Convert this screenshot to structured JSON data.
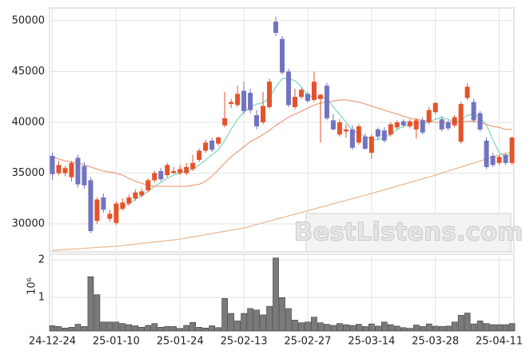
{
  "chart_data": {
    "type": "candlestick",
    "categories": [
      "24-12-24",
      null,
      null,
      null,
      null,
      null,
      null,
      null,
      null,
      null,
      "25-01-10",
      null,
      null,
      null,
      null,
      null,
      null,
      null,
      null,
      null,
      "25-01-24",
      null,
      null,
      null,
      null,
      null,
      null,
      null,
      null,
      null,
      "25-02-13",
      null,
      null,
      null,
      null,
      null,
      null,
      null,
      null,
      null,
      "25-02-27",
      null,
      null,
      null,
      null,
      null,
      null,
      null,
      null,
      null,
      "25-03-14",
      null,
      null,
      null,
      null,
      null,
      null,
      null,
      null,
      null,
      "25-03-28",
      null,
      null,
      null,
      null,
      null,
      null,
      null,
      null,
      null,
      "25-04-11",
      null,
      null
    ],
    "open": [
      36700,
      35000,
      35000,
      34600,
      36500,
      35700,
      34300,
      30300,
      32600,
      30500,
      30100,
      31500,
      32000,
      32500,
      32800,
      33300,
      34300,
      35200,
      34800,
      35000,
      35000,
      35000,
      35400,
      36300,
      37200,
      38200,
      37900,
      39700,
      41800,
      41700,
      43100,
      42900,
      40700,
      40000,
      41500,
      49900,
      48200,
      45000,
      41500,
      42500,
      42800,
      42200,
      42300,
      43600,
      40200,
      38800,
      39100,
      39300,
      38000,
      38600,
      37000,
      39300,
      39200,
      38800,
      39500,
      40100,
      39600,
      39300,
      40200,
      40000,
      41000,
      40300,
      40000,
      39700,
      38100,
      42400,
      42000,
      40900,
      38200,
      36700,
      36000,
      36800,
      36000
    ],
    "high": [
      37000,
      36200,
      35700,
      36200,
      36800,
      36100,
      34600,
      32600,
      33000,
      31400,
      32200,
      32500,
      32900,
      33400,
      33500,
      34500,
      35200,
      35500,
      36000,
      35600,
      35800,
      36000,
      36800,
      37400,
      38300,
      38500,
      38600,
      43000,
      42300,
      43600,
      44000,
      43300,
      41200,
      43000,
      44300,
      50400,
      48500,
      45300,
      43300,
      43400,
      43000,
      45000,
      42800,
      43900,
      40800,
      40300,
      39800,
      39700,
      39800,
      38900,
      38800,
      39500,
      39500,
      40000,
      40200,
      40300,
      40300,
      40400,
      40500,
      41500,
      42000,
      40600,
      40200,
      40700,
      42000,
      43800,
      42300,
      41100,
      38500,
      37000,
      36800,
      37000,
      38600
    ],
    "low": [
      34300,
      34800,
      34700,
      34200,
      33600,
      33500,
      29100,
      30000,
      31100,
      30200,
      29900,
      31300,
      31800,
      32300,
      32600,
      33100,
      34100,
      34200,
      34600,
      34900,
      34800,
      34800,
      35200,
      36100,
      37000,
      37100,
      37700,
      39500,
      41400,
      41500,
      40800,
      40900,
      39300,
      39800,
      41300,
      48500,
      44700,
      41500,
      41300,
      42300,
      41900,
      42000,
      38000,
      40200,
      39200,
      38600,
      38500,
      37300,
      37800,
      37300,
      36400,
      38300,
      38000,
      38600,
      39300,
      39500,
      39400,
      38400,
      38800,
      39800,
      40800,
      39100,
      39200,
      39500,
      37900,
      42200,
      40000,
      39100,
      35400,
      35600,
      35800,
      35800,
      35800
    ],
    "close": [
      34900,
      35800,
      35500,
      36000,
      33900,
      33800,
      29300,
      32400,
      31400,
      31000,
      32000,
      32100,
      32600,
      33100,
      33200,
      34300,
      35000,
      34400,
      35800,
      35200,
      35400,
      35600,
      36000,
      37200,
      38000,
      37300,
      38500,
      40400,
      42000,
      42800,
      41100,
      41200,
      39600,
      41600,
      44000,
      48800,
      44900,
      41700,
      42500,
      43200,
      42100,
      44000,
      42700,
      40400,
      39300,
      40000,
      39300,
      37500,
      39600,
      37400,
      38600,
      38600,
      38200,
      39800,
      40000,
      39700,
      40100,
      40200,
      39000,
      41200,
      41900,
      39300,
      39400,
      40500,
      41800,
      43500,
      40200,
      39300,
      35600,
      35800,
      36600,
      36000,
      38500
    ],
    "up_color": "#e4532b",
    "down_color": "#7074c0",
    "ylim": [
      27250,
      51250
    ],
    "yticks": [
      30000,
      35000,
      40000,
      45000,
      50000
    ],
    "grid": true,
    "moving_averages": [
      {
        "color": "#86d8c4",
        "values": [
          null,
          null,
          null,
          null,
          null,
          null,
          null,
          null,
          null,
          null,
          31300,
          31600,
          32000,
          32400,
          32800,
          33200,
          33700,
          34100,
          34500,
          34800,
          35000,
          35200,
          35400,
          35800,
          36300,
          36800,
          37300,
          38200,
          39300,
          40300,
          41000,
          41500,
          41800,
          41900,
          42400,
          43500,
          44300,
          44300,
          44100,
          43500,
          42600,
          42500,
          42400,
          42400,
          41500,
          40800,
          40000,
          39200,
          38900,
          38600,
          38300,
          38300,
          38500,
          38800,
          39300,
          39600,
          39800,
          39900,
          39900,
          40000,
          40300,
          40500,
          40300,
          40000,
          40200,
          40700,
          40800,
          40500,
          39700,
          38300,
          37000,
          36600,
          37000
        ]
      },
      {
        "color": "#eba487",
        "values": [
          36600,
          36400,
          36200,
          36100,
          36000,
          35800,
          35600,
          35400,
          35200,
          35100,
          35000,
          34800,
          34500,
          34200,
          34000,
          33800,
          33700,
          33700,
          33700,
          33700,
          33700,
          33700,
          33800,
          33900,
          34200,
          34700,
          35300,
          36000,
          36600,
          37100,
          37600,
          38100,
          38400,
          38800,
          39200,
          39700,
          40100,
          40500,
          40800,
          41100,
          41400,
          41700,
          41900,
          42000,
          42100,
          42200,
          42200,
          42100,
          42000,
          41800,
          41600,
          41400,
          41200,
          41000,
          40800,
          40600,
          40400,
          40300,
          40200,
          40100,
          40000,
          40000,
          40000,
          40000,
          40000,
          40100,
          40100,
          40000,
          39800,
          39600,
          39500,
          39300,
          39300
        ]
      },
      {
        "color": "#ebbb95",
        "values": [
          27400,
          27440,
          27480,
          27520,
          27560,
          27600,
          27640,
          27680,
          27720,
          27760,
          27800,
          27870,
          27940,
          28010,
          28080,
          28150,
          28220,
          28290,
          28360,
          28430,
          28500,
          28610,
          28720,
          28830,
          28940,
          29050,
          29160,
          29270,
          29380,
          29490,
          29600,
          29770,
          29940,
          30110,
          30280,
          30450,
          30620,
          30790,
          30960,
          31130,
          31300,
          31470,
          31640,
          31810,
          31980,
          32150,
          32320,
          32490,
          32660,
          32830,
          33000,
          33180,
          33360,
          33540,
          33720,
          33900,
          34080,
          34260,
          34440,
          34620,
          34800,
          35000,
          35200,
          35400,
          35600,
          35800,
          36000,
          36200,
          36400,
          36600,
          36800,
          36950,
          37100
        ]
      }
    ],
    "volume": {
      "values": [
        0.24,
        0.22,
        0.18,
        0.2,
        0.28,
        0.22,
        1.55,
        1.07,
        0.34,
        0.34,
        0.34,
        0.3,
        0.27,
        0.24,
        0.2,
        0.25,
        0.3,
        0.2,
        0.22,
        0.22,
        0.17,
        0.25,
        0.33,
        0.2,
        0.18,
        0.24,
        0.19,
        0.97,
        0.57,
        0.37,
        0.57,
        0.7,
        0.66,
        0.53,
        0.76,
        2.05,
        0.99,
        0.7,
        0.39,
        0.32,
        0.34,
        0.47,
        0.32,
        0.28,
        0.25,
        0.3,
        0.27,
        0.25,
        0.28,
        0.22,
        0.29,
        0.23,
        0.34,
        0.27,
        0.23,
        0.19,
        0.17,
        0.26,
        0.22,
        0.29,
        0.23,
        0.22,
        0.23,
        0.34,
        0.52,
        0.58,
        0.29,
        0.37,
        0.3,
        0.27,
        0.27,
        0.27,
        0.3
      ],
      "color": "#7a7a7a",
      "ylim": [
        0.1,
        2.15
      ],
      "yticks": [
        1,
        2
      ],
      "unit_label": "10⁶"
    },
    "watermark": "BestListens.com"
  }
}
